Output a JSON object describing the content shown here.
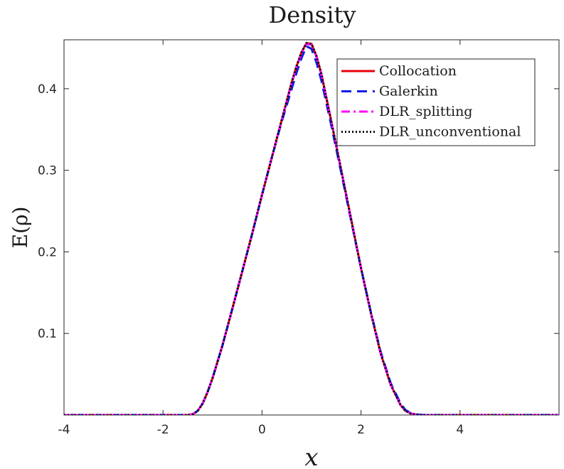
{
  "chart_data": {
    "type": "line",
    "title": "Density",
    "xlabel": "x",
    "ylabel": "E(ρ)",
    "xlim": [
      -4,
      6
    ],
    "ylim": [
      0,
      0.46
    ],
    "x_ticks": [
      -4,
      -2,
      0,
      2,
      4
    ],
    "x_tick_labels": [
      "-4",
      "-2",
      "0",
      "2",
      "4"
    ],
    "y_ticks": [
      0.1,
      0.2,
      0.3,
      0.4
    ],
    "y_tick_labels": [
      "0.1",
      "0.2",
      "0.3",
      "0.4"
    ],
    "grid": false,
    "legend_position": "top-right",
    "x": [
      -4,
      -1.5,
      -1.4,
      -1.3,
      -1.2,
      -1.1,
      -1.0,
      -0.8,
      -0.6,
      -0.4,
      -0.2,
      0,
      0.2,
      0.4,
      0.6,
      0.7,
      0.8,
      0.9,
      1.0,
      1.1,
      1.2,
      1.4,
      1.6,
      1.8,
      2.0,
      2.2,
      2.4,
      2.6,
      2.8,
      2.9,
      3.0,
      3.1,
      3.2,
      3.3,
      3.4,
      6
    ],
    "series": [
      {
        "name": "Collocation",
        "color": "#e8000b",
        "style": "solid",
        "values": [
          0,
          0,
          0.001,
          0.005,
          0.014,
          0.028,
          0.045,
          0.085,
          0.13,
          0.176,
          0.222,
          0.27,
          0.316,
          0.362,
          0.408,
          0.428,
          0.445,
          0.456,
          0.455,
          0.44,
          0.418,
          0.36,
          0.3,
          0.24,
          0.18,
          0.125,
          0.075,
          0.037,
          0.012,
          0.005,
          0.002,
          0.0006,
          0.0001,
          0,
          0,
          0
        ]
      },
      {
        "name": "Galerkin",
        "color": "#0a1ee6",
        "style": "dashed",
        "values": [
          0,
          0,
          0.001,
          0.005,
          0.014,
          0.028,
          0.045,
          0.085,
          0.13,
          0.176,
          0.222,
          0.27,
          0.316,
          0.36,
          0.4,
          0.42,
          0.438,
          0.452,
          0.449,
          0.432,
          0.41,
          0.355,
          0.297,
          0.238,
          0.18,
          0.126,
          0.077,
          0.039,
          0.014,
          0.006,
          0.0025,
          0.0008,
          0.0002,
          0,
          0,
          0
        ]
      },
      {
        "name": "DLR_splitting",
        "color": "#ff00ff",
        "style": "dashdot",
        "values": [
          0,
          0,
          0.001,
          0.005,
          0.014,
          0.028,
          0.045,
          0.085,
          0.13,
          0.176,
          0.222,
          0.27,
          0.316,
          0.362,
          0.407,
          0.427,
          0.444,
          0.455,
          0.454,
          0.439,
          0.417,
          0.36,
          0.3,
          0.24,
          0.18,
          0.125,
          0.075,
          0.037,
          0.012,
          0.005,
          0.002,
          0.0006,
          0.0001,
          0,
          0,
          0
        ]
      },
      {
        "name": "DLR_unconventional",
        "color": "#000000",
        "style": "dotted",
        "values": [
          0,
          0,
          0.001,
          0.005,
          0.014,
          0.028,
          0.045,
          0.085,
          0.13,
          0.176,
          0.222,
          0.27,
          0.316,
          0.362,
          0.408,
          0.428,
          0.445,
          0.456,
          0.455,
          0.44,
          0.418,
          0.36,
          0.3,
          0.24,
          0.18,
          0.125,
          0.075,
          0.037,
          0.012,
          0.005,
          0.002,
          0.0006,
          0.0001,
          0,
          0,
          0
        ]
      }
    ]
  }
}
